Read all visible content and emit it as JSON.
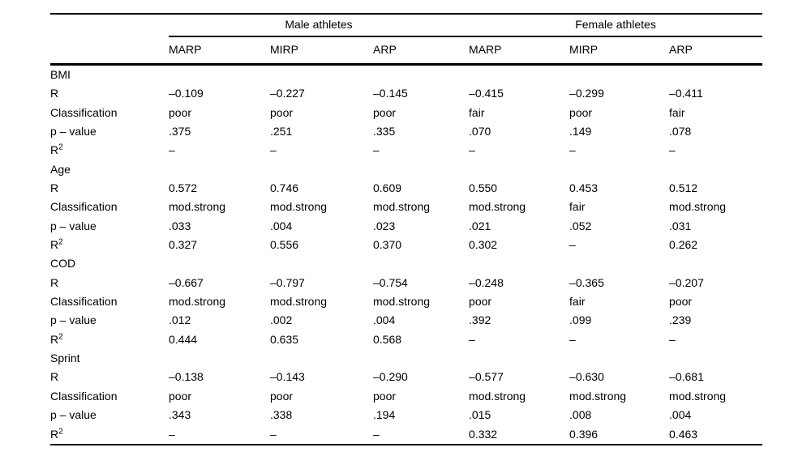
{
  "table": {
    "group_headers": [
      "Male athletes",
      "Female athletes"
    ],
    "col_headers": [
      "MARP",
      "MIRP",
      "ARP",
      "MARP",
      "MIRP",
      "ARP"
    ],
    "sections": [
      {
        "name": "BMI",
        "rows": [
          {
            "label": "R",
            "values": [
              "–0.109",
              "–0.227",
              "–0.145",
              "–0.415",
              "–0.299",
              "–0.411"
            ]
          },
          {
            "label": "Classification",
            "values": [
              "poor",
              "poor",
              "poor",
              "fair",
              "poor",
              "fair"
            ]
          },
          {
            "label": "p – value",
            "values": [
              ".375",
              ".251",
              ".335",
              ".070",
              ".149",
              ".078"
            ]
          },
          {
            "label": "R",
            "label_sup": "2",
            "values": [
              "–",
              "–",
              "–",
              "–",
              "–",
              "–"
            ]
          }
        ]
      },
      {
        "name": "Age",
        "rows": [
          {
            "label": "R",
            "values": [
              "0.572",
              "0.746",
              "0.609",
              "0.550",
              "0.453",
              "0.512"
            ]
          },
          {
            "label": "Classification",
            "values": [
              "mod.strong",
              "mod.strong",
              "mod.strong",
              "mod.strong",
              "fair",
              "mod.strong"
            ]
          },
          {
            "label": "p – value",
            "values": [
              ".033",
              ".004",
              ".023",
              ".021",
              ".052",
              ".031"
            ]
          },
          {
            "label": "R",
            "label_sup": "2",
            "values": [
              "0.327",
              "0.556",
              "0.370",
              "0.302",
              "–",
              "0.262"
            ]
          }
        ]
      },
      {
        "name": "COD",
        "rows": [
          {
            "label": "R",
            "values": [
              "–0.667",
              "–0.797",
              "–0.754",
              "–0.248",
              "–0.365",
              "–0.207"
            ]
          },
          {
            "label": "Classification",
            "values": [
              "mod.strong",
              "mod.strong",
              "mod.strong",
              "poor",
              "fair",
              "poor"
            ]
          },
          {
            "label": "p – value",
            "values": [
              ".012",
              ".002",
              ".004",
              ".392",
              ".099",
              ".239"
            ]
          },
          {
            "label": "R",
            "label_sup": "2",
            "values": [
              "0.444",
              "0.635",
              "0.568",
              "–",
              "–",
              "–"
            ]
          }
        ]
      },
      {
        "name": "Sprint",
        "rows": [
          {
            "label": "R",
            "values": [
              "–0.138",
              "–0.143",
              "–0.290",
              "–0.577",
              "–0.630",
              "–0.681"
            ]
          },
          {
            "label": "Classification",
            "values": [
              "poor",
              "poor",
              "poor",
              "mod.strong",
              "mod.strong",
              "mod.strong"
            ]
          },
          {
            "label": "p – value",
            "values": [
              ".343",
              ".338",
              ".194",
              ".015",
              ".008",
              ".004"
            ]
          },
          {
            "label": "R",
            "label_sup": "2",
            "values": [
              "–",
              "–",
              "–",
              "0.332",
              "0.396",
              "0.463"
            ]
          }
        ]
      }
    ]
  }
}
